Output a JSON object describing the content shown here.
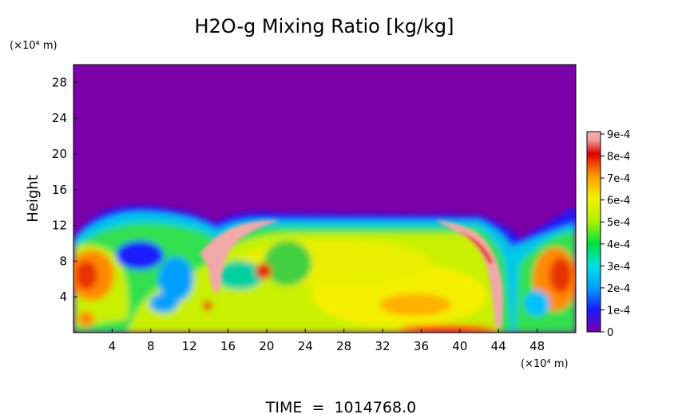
{
  "chart_data": {
    "type": "heatmap",
    "title": "H2O-g Mixing Ratio [kg/kg]",
    "ylabel": "Height",
    "y_unit": "(×10⁴ m)",
    "x_unit": "(×10⁴ m)",
    "xlim": [
      0,
      52
    ],
    "ylim": [
      0,
      30
    ],
    "x_ticks": [
      4,
      8,
      12,
      16,
      20,
      24,
      28,
      32,
      36,
      40,
      44,
      48
    ],
    "y_ticks": [
      4,
      8,
      12,
      16,
      20,
      24,
      28
    ],
    "colorbar": {
      "min": 0,
      "max": 0.0009,
      "tick_labels": [
        "0",
        "1e-4",
        "2e-4",
        "3e-4",
        "4e-4",
        "5e-4",
        "6e-4",
        "7e-4",
        "8e-4",
        "9e-4"
      ]
    },
    "field_notes": {
      "layer_top_height": 13,
      "above_layer_value": 0
    }
  },
  "footer": {
    "time_label": "TIME  =  1014768.0"
  }
}
